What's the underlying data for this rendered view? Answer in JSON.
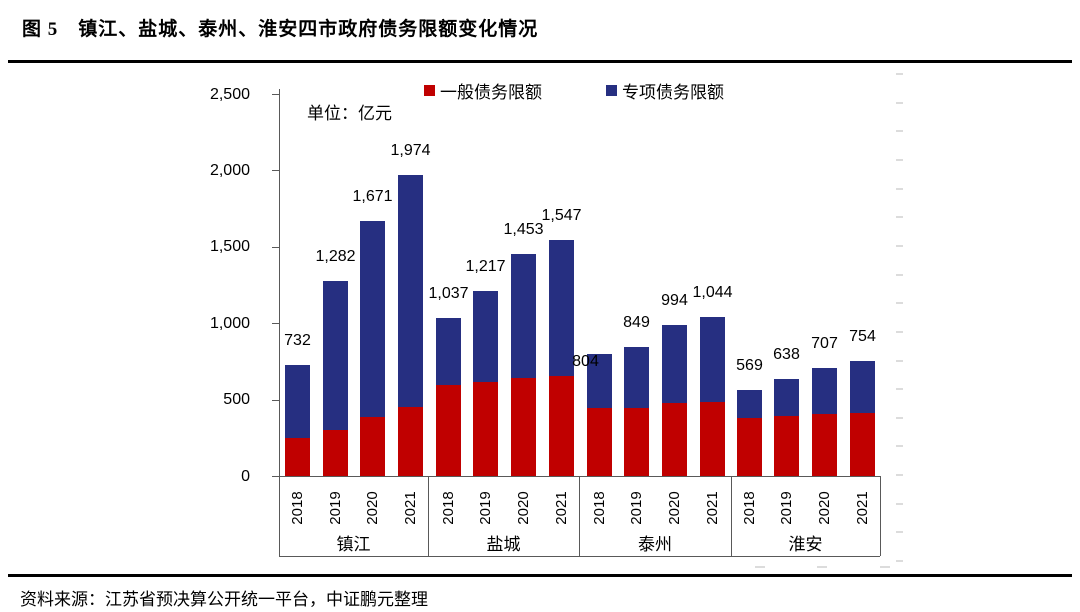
{
  "figure": {
    "title": "图 5　镇江、盐城、泰州、淮安四市政府债务限额变化情况",
    "unit_label": "单位：亿元",
    "source": "资料来源：江苏省预决算公开统一平台，中证鹏元整理"
  },
  "legend": [
    {
      "label": "一般债务限额",
      "color": "#C00000"
    },
    {
      "label": "专项债务限额",
      "color": "#262F81"
    }
  ],
  "colors": {
    "general_debt": "#C00000",
    "special_debt": "#262F81",
    "axis": "#595959",
    "faint_tick": "#dcdcdc"
  },
  "chart_data": {
    "type": "bar",
    "stacked": true,
    "title": "镇江、盐城、泰州、淮安四市政府债务限额变化情况",
    "unit": "亿元",
    "groups": [
      "镇江",
      "盐城",
      "泰州",
      "淮安"
    ],
    "x": [
      "2018",
      "2019",
      "2020",
      "2021",
      "2018",
      "2019",
      "2020",
      "2021",
      "2018",
      "2019",
      "2020",
      "2021",
      "2018",
      "2019",
      "2020",
      "2021"
    ],
    "series": [
      {
        "name": "一般债务限额",
        "color": "#C00000",
        "estimated_from_pixels": true,
        "values": [
          250,
          305,
          388,
          457,
          600,
          616,
          643,
          660,
          446,
          446,
          479,
          490,
          385,
          398,
          408,
          414
        ]
      },
      {
        "name": "专项债务限额",
        "color": "#262F81",
        "estimated_from_pixels": true,
        "values": [
          482,
          977,
          1283,
          1517,
          437,
          601,
          810,
          887,
          358,
          403,
          515,
          554,
          184,
          240,
          299,
          340
        ]
      }
    ],
    "totals": [
      732,
      1282,
      1671,
      1974,
      1037,
      1217,
      1453,
      1547,
      804,
      849,
      994,
      1044,
      569,
      638,
      707,
      754
    ],
    "total_labels": [
      "732",
      "1,282",
      "1,671",
      "1,974",
      "1,037",
      "1,217",
      "1,453",
      "1,547",
      "804",
      "849",
      "994",
      "1,044",
      "569",
      "638",
      "707",
      "754"
    ],
    "ylim": [
      0,
      2500
    ],
    "ytick_step": 500,
    "yticks": [
      "0",
      "500",
      "1,000",
      "1,500",
      "2,000",
      "2,500"
    ],
    "legend_position": "top",
    "grid": false
  }
}
